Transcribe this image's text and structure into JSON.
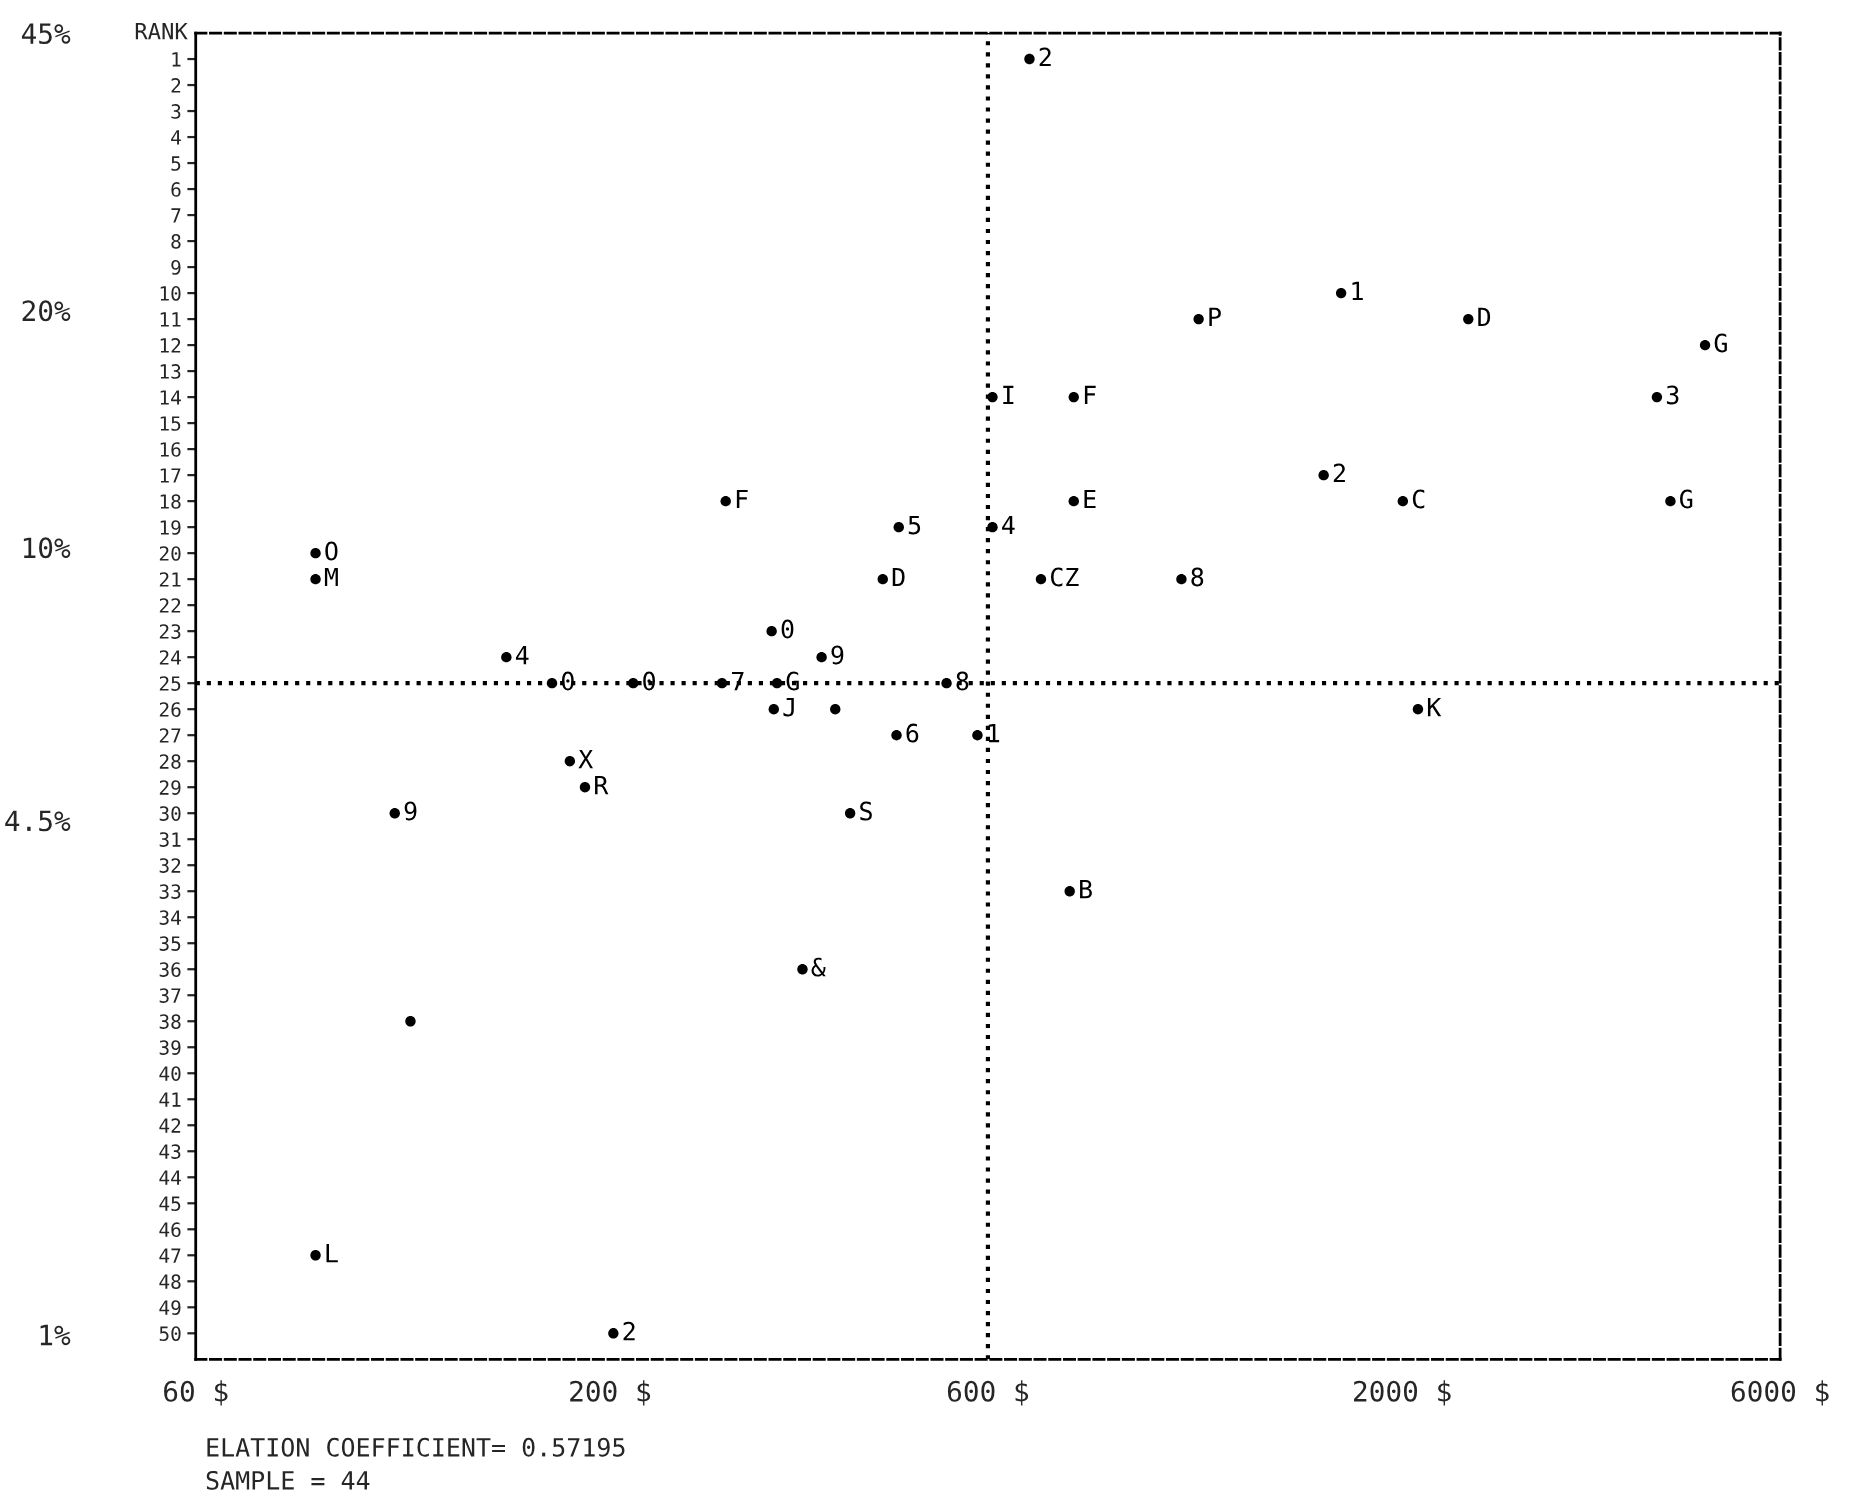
{
  "chart_data": {
    "type": "scatter",
    "y2label": "RANK",
    "series": [
      {
        "name": "F",
        "x": [
          280
        ],
        "values": [
          18
        ],
        "axis": "y2"
      },
      {
        "name": "O",
        "x": [
          85
        ],
        "values": [
          20
        ],
        "axis": "y2"
      },
      {
        "name": "M",
        "x": [
          85
        ],
        "values": [
          21
        ],
        "axis": "y2"
      },
      {
        "name": "0",
        "x": [
          320
        ],
        "values": [
          23
        ],
        "axis": "y2"
      },
      {
        "name": "4",
        "x": [
          148
        ],
        "values": [
          24
        ],
        "axis": "y2"
      },
      {
        "name": "9",
        "x": [
          370
        ],
        "values": [
          24
        ],
        "axis": "y2"
      },
      {
        "name": "0",
        "x": [
          169
        ],
        "values": [
          25
        ],
        "axis": "y2"
      },
      {
        "name": "0",
        "x": [
          214
        ],
        "values": [
          25
        ],
        "axis": "y2"
      },
      {
        "name": "7",
        "x": [
          277
        ],
        "values": [
          25
        ],
        "axis": "y2"
      },
      {
        "name": "G",
        "x": [
          325
        ],
        "values": [
          25
        ],
        "axis": "y2"
      },
      {
        "name": "8",
        "x": [
          532
        ],
        "values": [
          25
        ],
        "axis": "y2"
      },
      {
        "name": "J",
        "x": [
          322
        ],
        "values": [
          26
        ],
        "axis": "y2"
      },
      {
        "x": [
          385
        ],
        "values": [
          26
        ],
        "axis": "y2"
      },
      {
        "name": "5",
        "x": [
          463
        ],
        "values": [
          19
        ],
        "axis": "y2"
      },
      {
        "name": "D",
        "x": [
          442
        ],
        "values": [
          21
        ],
        "axis": "y2"
      },
      {
        "name": "6",
        "x": [
          460
        ],
        "values": [
          27
        ],
        "axis": "y2"
      },
      {
        "name": "X",
        "x": [
          178
        ],
        "values": [
          28
        ],
        "axis": "y2"
      },
      {
        "name": "R",
        "x": [
          186
        ],
        "values": [
          29
        ],
        "axis": "y2"
      },
      {
        "name": "9",
        "x": [
          107
        ],
        "values": [
          30
        ],
        "axis": "y2"
      },
      {
        "name": "S",
        "x": [
          402
        ],
        "values": [
          30
        ],
        "axis": "y2"
      },
      {
        "name": "&",
        "x": [
          350
        ],
        "values": [
          36
        ],
        "axis": "y2"
      },
      {
        "x": [
          112
        ],
        "values": [
          38
        ],
        "axis": "y2"
      },
      {
        "name": "L",
        "x": [
          85
        ],
        "values": [
          47
        ],
        "axis": "y2"
      },
      {
        "name": "2",
        "x": [
          202
        ],
        "values": [
          50
        ],
        "axis": "y2"
      },
      {
        "name": "2",
        "x": [
          677
        ],
        "values": [
          1
        ],
        "axis": "y2"
      },
      {
        "name": "1",
        "x": [
          1675
        ],
        "values": [
          10
        ],
        "axis": "y2"
      },
      {
        "name": "P",
        "x": [
          1107
        ],
        "values": [
          11
        ],
        "axis": "y2"
      },
      {
        "name": "D",
        "x": [
          2424
        ],
        "values": [
          11
        ],
        "axis": "y2"
      },
      {
        "name": "G",
        "x": [
          4824
        ],
        "values": [
          12
        ],
        "axis": "y2"
      },
      {
        "name": "I",
        "x": [
          608
        ],
        "values": [
          14
        ],
        "axis": "y2"
      },
      {
        "name": "F",
        "x": [
          770
        ],
        "values": [
          14
        ],
        "axis": "y2"
      },
      {
        "name": "3",
        "x": [
          4194
        ],
        "values": [
          14
        ],
        "axis": "y2"
      },
      {
        "name": "2",
        "x": [
          1592
        ],
        "values": [
          17
        ],
        "axis": "y2"
      },
      {
        "name": "E",
        "x": [
          770
        ],
        "values": [
          18
        ],
        "axis": "y2"
      },
      {
        "name": "C",
        "x": [
          2004
        ],
        "values": [
          18
        ],
        "axis": "y2"
      },
      {
        "name": "G",
        "x": [
          4362
        ],
        "values": [
          18
        ],
        "axis": "y2"
      },
      {
        "name": "4",
        "x": [
          608
        ],
        "values": [
          19
        ],
        "axis": "y2"
      },
      {
        "name": "CZ",
        "x": [
          700
        ],
        "values": [
          21
        ],
        "axis": "y2"
      },
      {
        "name": "8",
        "x": [
          1053
        ],
        "values": [
          21
        ],
        "axis": "y2"
      },
      {
        "name": "K",
        "x": [
          2094
        ],
        "values": [
          26
        ],
        "axis": "y2"
      },
      {
        "name": "1",
        "x": [
          582
        ],
        "values": [
          27
        ],
        "axis": "y2"
      },
      {
        "name": "B",
        "x": [
          761
        ],
        "values": [
          33
        ],
        "axis": "y2"
      }
    ],
    "color": "#000000",
    "marker": "circle",
    "log": "xy",
    "xlim": [
      60,
      6000
    ],
    "xticks": [
      {
        "value": 60,
        "label": "60 $"
      },
      {
        "value": 200,
        "label": "200 $"
      },
      {
        "value": 600,
        "label": "600 $"
      },
      {
        "value": 2000,
        "label": "2000 $"
      },
      {
        "value": 6000,
        "label": "6000 $"
      }
    ],
    "ylim": [
      0.93,
      45
    ],
    "yticks": [
      {
        "value": 45,
        "label": "45%"
      },
      {
        "value": 20,
        "label": "20%"
      },
      {
        "value": 10,
        "label": "10%"
      },
      {
        "value": 4.5,
        "label": "4.5%"
      },
      {
        "value": 1,
        "label": "1%"
      }
    ],
    "y2lim": [
      51,
      0
    ],
    "y2ticks": [
      1,
      2,
      3,
      4,
      5,
      6,
      7,
      8,
      9,
      10,
      11,
      12,
      13,
      14,
      15,
      16,
      17,
      18,
      19,
      20,
      21,
      22,
      23,
      24,
      25,
      26,
      27,
      28,
      29,
      30,
      31,
      32,
      33,
      34,
      35,
      36,
      37,
      38,
      39,
      40,
      41,
      42,
      43,
      44,
      45,
      46,
      47,
      48,
      49,
      50
    ],
    "ref_lines": [
      {
        "axis": "x",
        "value": 600,
        "line_style": "dotted"
      },
      {
        "axis": "y2",
        "value": 25,
        "line_style": "dotted"
      }
    ],
    "grid": false,
    "legend": false,
    "annotations": [
      "ELATION COEFFICIENT= 0.57195",
      "SAMPLE = 44"
    ]
  }
}
